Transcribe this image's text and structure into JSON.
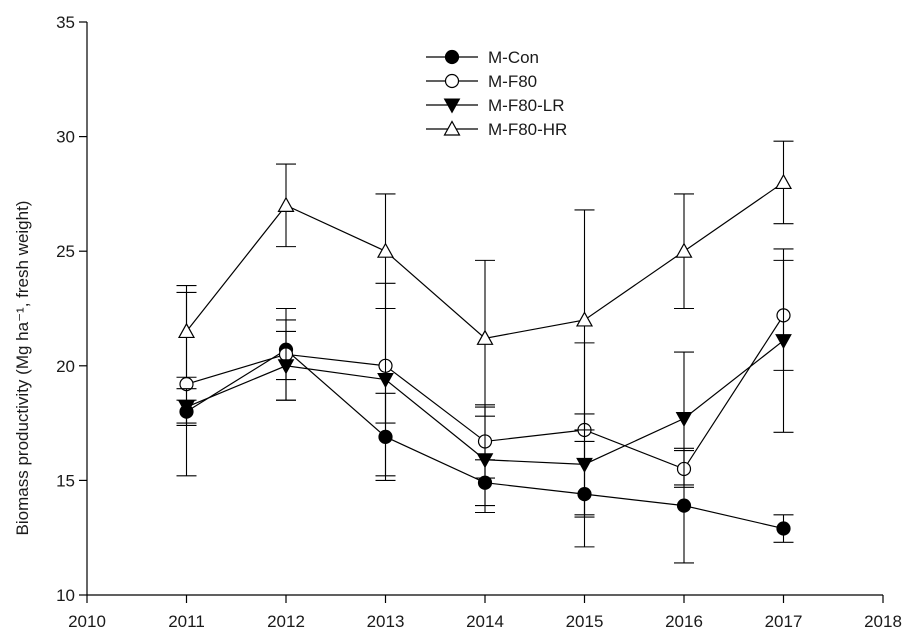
{
  "chart_data": {
    "type": "line",
    "title": "",
    "xlabel": "",
    "ylabel": "Biomass productivity (Mg ha⁻¹, fresh weight)",
    "xlim": [
      2010,
      2018
    ],
    "ylim": [
      10,
      35
    ],
    "xticks": [
      "2010",
      "2011",
      "2012",
      "2013",
      "2014",
      "2015",
      "2016",
      "2017",
      "2018"
    ],
    "yticks": [
      "10",
      "15",
      "20",
      "25",
      "30",
      "35"
    ],
    "x": [
      2011,
      2012,
      2013,
      2014,
      2015,
      2016,
      2017
    ],
    "grid": false,
    "legend_position": "top-center",
    "series": [
      {
        "name": "M-Con",
        "marker": "filled-circle",
        "values": [
          18.0,
          20.7,
          16.9,
          14.9,
          14.4,
          13.9,
          12.9
        ],
        "error": [
          0.5,
          1.3,
          1.9,
          1.0,
          2.3,
          2.5,
          0.6
        ]
      },
      {
        "name": "M-F80",
        "marker": "open-circle",
        "values": [
          19.2,
          20.5,
          20.0,
          16.7,
          17.2,
          15.5,
          22.2
        ],
        "error": [
          4.0,
          2.0,
          2.5,
          1.6,
          3.8,
          0.8,
          2.4
        ]
      },
      {
        "name": "M-F80-LR",
        "marker": "filled-triangle-down",
        "values": [
          18.2,
          20.0,
          19.4,
          15.9,
          15.7,
          17.7,
          21.1
        ],
        "error": [
          0.8,
          1.5,
          4.2,
          2.3,
          2.2,
          2.9,
          4.0
        ]
      },
      {
        "name": "M-F80-HR",
        "marker": "open-triangle-up",
        "values": [
          21.5,
          27.0,
          25.0,
          21.2,
          22.0,
          25.0,
          28.0
        ],
        "error": [
          2.0,
          1.8,
          2.5,
          3.4,
          4.8,
          2.5,
          1.8
        ]
      }
    ]
  }
}
